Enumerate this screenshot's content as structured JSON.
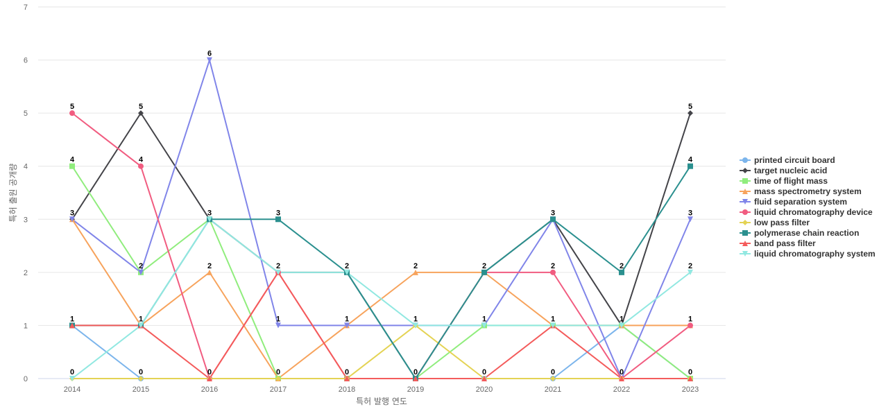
{
  "chart_data": {
    "type": "line",
    "title": "",
    "xlabel": "특허 발행 연도",
    "ylabel": "특허 출원 공개량",
    "x": [
      "2014",
      "2015",
      "2016",
      "2017",
      "2018",
      "2019",
      "2020",
      "2021",
      "2022",
      "2023"
    ],
    "ylim": [
      0,
      7
    ],
    "yticks": [
      0,
      1,
      2,
      3,
      4,
      5,
      6,
      7
    ],
    "grid": true,
    "legend_position": "right",
    "series": [
      {
        "name": "printed circuit board",
        "color": "#7cb5ec",
        "marker": "circle",
        "values": [
          1,
          0,
          0,
          0,
          0,
          0,
          0,
          0,
          1,
          0
        ]
      },
      {
        "name": "target nucleic acid",
        "color": "#434348",
        "marker": "diamond",
        "values": [
          3,
          5,
          3,
          2,
          2,
          0,
          2,
          3,
          1,
          5
        ]
      },
      {
        "name": "time of flight mass",
        "color": "#90ed7d",
        "marker": "square",
        "values": [
          4,
          2,
          3,
          0,
          0,
          0,
          1,
          1,
          1,
          0
        ]
      },
      {
        "name": "mass spectrometry system",
        "color": "#f7a35c",
        "marker": "triangle",
        "values": [
          3,
          1,
          2,
          0,
          1,
          2,
          2,
          1,
          1,
          1
        ]
      },
      {
        "name": "fluid separation system",
        "color": "#8085e9",
        "marker": "triangle-down",
        "values": [
          3,
          2,
          6,
          1,
          1,
          1,
          1,
          3,
          0,
          3
        ]
      },
      {
        "name": "liquid chromatography device",
        "color": "#f15c80",
        "marker": "circle",
        "values": [
          5,
          4,
          0,
          2,
          0,
          0,
          2,
          2,
          0,
          1
        ]
      },
      {
        "name": "low pass filter",
        "color": "#e4d354",
        "marker": "diamond",
        "values": [
          0,
          0,
          0,
          0,
          0,
          1,
          0,
          0,
          0,
          0
        ]
      },
      {
        "name": "polymerase chain reaction",
        "color": "#2b908f",
        "marker": "square",
        "values": [
          1,
          1,
          3,
          3,
          2,
          0,
          2,
          3,
          2,
          4
        ]
      },
      {
        "name": "band pass filter",
        "color": "#f45b5b",
        "marker": "triangle",
        "values": [
          1,
          1,
          0,
          2,
          0,
          0,
          0,
          1,
          0,
          0
        ]
      },
      {
        "name": "liquid chromatography system",
        "color": "#91e8e1",
        "marker": "triangle-down",
        "values": [
          0,
          1,
          3,
          2,
          2,
          1,
          1,
          1,
          1,
          2
        ]
      }
    ],
    "data_labels": [
      {
        "x": "2014",
        "y": 5,
        "text": "5"
      },
      {
        "x": "2014",
        "y": 4,
        "text": "4"
      },
      {
        "x": "2014",
        "y": 3,
        "text": "3"
      },
      {
        "x": "2014",
        "y": 1,
        "text": "1"
      },
      {
        "x": "2014",
        "y": 0,
        "text": "0"
      },
      {
        "x": "2015",
        "y": 5,
        "text": "5"
      },
      {
        "x": "2015",
        "y": 4,
        "text": "4"
      },
      {
        "x": "2015",
        "y": 2,
        "text": "2"
      },
      {
        "x": "2015",
        "y": 1,
        "text": "1"
      },
      {
        "x": "2015",
        "y": 0,
        "text": "0"
      },
      {
        "x": "2016",
        "y": 6,
        "text": "6"
      },
      {
        "x": "2016",
        "y": 3,
        "text": "3"
      },
      {
        "x": "2016",
        "y": 2,
        "text": "2"
      },
      {
        "x": "2016",
        "y": 0,
        "text": "0"
      },
      {
        "x": "2017",
        "y": 3,
        "text": "3"
      },
      {
        "x": "2017",
        "y": 2,
        "text": "2"
      },
      {
        "x": "2017",
        "y": 1,
        "text": "1"
      },
      {
        "x": "2017",
        "y": 0,
        "text": "0"
      },
      {
        "x": "2018",
        "y": 2,
        "text": "2"
      },
      {
        "x": "2018",
        "y": 1,
        "text": "1"
      },
      {
        "x": "2018",
        "y": 0,
        "text": "0"
      },
      {
        "x": "2019",
        "y": 2,
        "text": "2"
      },
      {
        "x": "2019",
        "y": 1,
        "text": "1"
      },
      {
        "x": "2019",
        "y": 0,
        "text": "0"
      },
      {
        "x": "2020",
        "y": 2,
        "text": "2"
      },
      {
        "x": "2020",
        "y": 1,
        "text": "1"
      },
      {
        "x": "2020",
        "y": 0,
        "text": "0"
      },
      {
        "x": "2021",
        "y": 3,
        "text": "3"
      },
      {
        "x": "2021",
        "y": 2,
        "text": "2"
      },
      {
        "x": "2021",
        "y": 1,
        "text": "1"
      },
      {
        "x": "2021",
        "y": 0,
        "text": "0"
      },
      {
        "x": "2022",
        "y": 2,
        "text": "2"
      },
      {
        "x": "2022",
        "y": 1,
        "text": "1"
      },
      {
        "x": "2022",
        "y": 0,
        "text": "0"
      },
      {
        "x": "2023",
        "y": 5,
        "text": "5"
      },
      {
        "x": "2023",
        "y": 4,
        "text": "4"
      },
      {
        "x": "2023",
        "y": 3,
        "text": "3"
      },
      {
        "x": "2023",
        "y": 2,
        "text": "2"
      },
      {
        "x": "2023",
        "y": 1,
        "text": "1"
      },
      {
        "x": "2023",
        "y": 0,
        "text": "0"
      }
    ]
  }
}
